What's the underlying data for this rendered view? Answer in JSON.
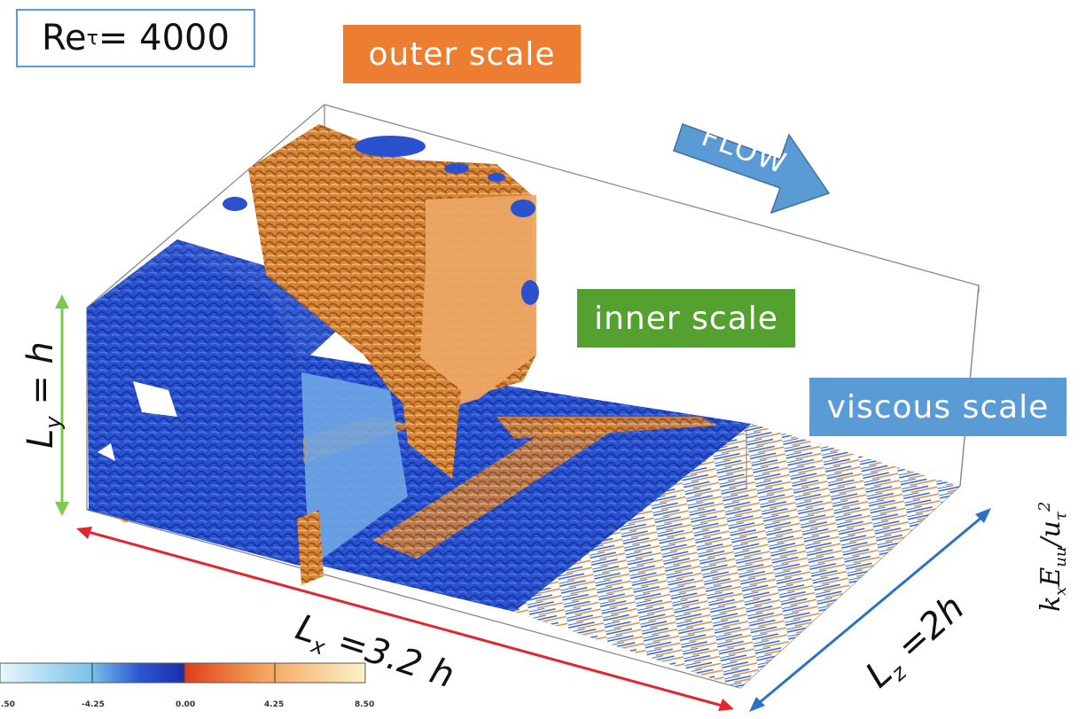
{
  "labels": {
    "reynolds": "Re",
    "reynolds_sub": "τ",
    "reynolds_value": " = 4000",
    "outer": "outer scale",
    "inner": "inner scale",
    "viscous": "viscous scale",
    "flow": "FLOW",
    "ly": "L",
    "ly_sub": "y",
    "ly_rest": " = h",
    "lx": "L",
    "lx_sub": "x",
    "lx_rest": " =3.2 h",
    "lz": "L",
    "lz_sub": "z",
    "lz_rest": " =2h",
    "cut_axis": "k",
    "cut_axis_rest": "E",
    "cut_axis_tail": "/u",
    "cut_axis_exp": "2"
  },
  "colorbar": {
    "ticks": [
      "-4.25",
      "0.00",
      "4.25",
      "8.50"
    ],
    "edge_tick": ".50",
    "colors": [
      "#dff6fb",
      "#7cc6ec",
      "#3a6fd0",
      "#1a33b0",
      "#e34a1f",
      "#f1a35a",
      "#f8e9a8"
    ]
  },
  "colors": {
    "blue": "#2d5bd6",
    "orange": "#d98a3e",
    "light_blue": "#7fb6ea",
    "red_arrow": "#e3262d",
    "blue_arrow": "#2a72c4",
    "green_arrow": "#7dc94b"
  }
}
